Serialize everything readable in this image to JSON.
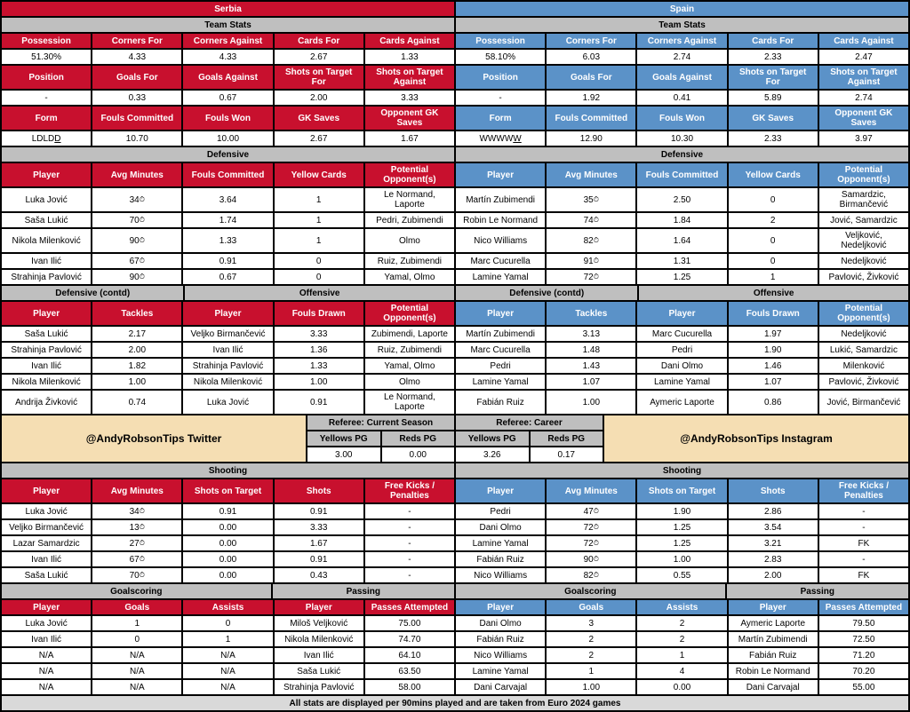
{
  "colors": {
    "red": "#c8102e",
    "blue": "#5b92c8",
    "gray": "#bfbfbf",
    "promo": "#f5deb3",
    "footer": "#d9d9d9"
  },
  "teams": {
    "left": "Serbia",
    "right": "Spain"
  },
  "sections": {
    "teamStats": "Team Stats",
    "defensive": "Defensive",
    "defContd": "Defensive (contd)",
    "offensive": "Offensive",
    "shooting": "Shooting",
    "goalscoring": "Goalscoring",
    "passing": "Passing",
    "refCurrent": "Referee: Current Season",
    "refCareer": "Referee: Career"
  },
  "statHdr": {
    "r1": [
      "Possession",
      "Corners For",
      "Corners Against",
      "Cards For",
      "Cards Against"
    ],
    "r2": [
      "Position",
      "Goals For",
      "Goals Against",
      "Shots on Target For",
      "Shots on Target Against"
    ],
    "r3": [
      "Form",
      "Fouls Committed",
      "Fouls Won",
      "GK Saves",
      "Opponent GK Saves"
    ]
  },
  "stats": {
    "left": {
      "r1": [
        "51.30%",
        "4.33",
        "4.33",
        "2.67",
        "1.33"
      ],
      "r2": [
        "-",
        "0.33",
        "0.67",
        "2.00",
        "3.33"
      ],
      "r3": [
        "L D L D D",
        "10.70",
        "10.00",
        "2.67",
        "1.67"
      ]
    },
    "right": {
      "r1": [
        "58.10%",
        "6.03",
        "2.74",
        "2.33",
        "2.47"
      ],
      "r2": [
        "-",
        "1.92",
        "0.41",
        "5.89",
        "2.74"
      ],
      "r3": [
        "W W W W W",
        "12.90",
        "10.30",
        "2.33",
        "3.97"
      ]
    }
  },
  "formLastU": {
    "left": "D",
    "right": "W"
  },
  "defHdr": [
    "Player",
    "Avg Minutes",
    "Fouls Committed",
    "Yellow Cards",
    "Potential Opponent(s)"
  ],
  "def": {
    "left": [
      [
        "Luka Jović",
        "34",
        "3.64",
        "1",
        "Le Normand, Laporte"
      ],
      [
        "Saša Lukić",
        "70",
        "1.74",
        "1",
        "Pedri, Zubimendi"
      ],
      [
        "Nikola Milenković",
        "90",
        "1.33",
        "1",
        "Olmo"
      ],
      [
        "Ivan Ilić",
        "67",
        "0.91",
        "0",
        "Ruiz, Zubimendi"
      ],
      [
        "Strahinja Pavlović",
        "90",
        "0.67",
        "0",
        "Yamal, Olmo"
      ]
    ],
    "right": [
      [
        "Martín Zubimendi",
        "35",
        "2.50",
        "0",
        "Samardzic, Birmančević"
      ],
      [
        "Robin Le Normand",
        "74",
        "1.84",
        "2",
        "Jović, Samardzic"
      ],
      [
        "Nico Williams",
        "82",
        "1.64",
        "0",
        "Veljković, Nedeljković"
      ],
      [
        "Marc Cucurella",
        "91",
        "1.31",
        "0",
        "Nedeljković"
      ],
      [
        "Lamine Yamal",
        "72",
        "1.25",
        "1",
        "Pavlović, Živković"
      ]
    ]
  },
  "tackHdr": [
    "Player",
    "Tackles"
  ],
  "offHdr": [
    "Player",
    "Fouls Drawn",
    "Potential Opponent(s)"
  ],
  "tack": {
    "left": [
      [
        "Saša Lukić",
        "2.17"
      ],
      [
        "Strahinja Pavlović",
        "2.00"
      ],
      [
        "Ivan Ilić",
        "1.82"
      ],
      [
        "Nikola Milenković",
        "1.00"
      ],
      [
        "Andrija Živković",
        "0.74"
      ]
    ],
    "right": [
      [
        "Martín Zubimendi",
        "3.13"
      ],
      [
        "Marc Cucurella",
        "1.48"
      ],
      [
        "Pedri",
        "1.43"
      ],
      [
        "Lamine Yamal",
        "1.07"
      ],
      [
        "Fabián Ruiz",
        "1.00"
      ]
    ]
  },
  "off": {
    "left": [
      [
        "Veljko Birmančević",
        "3.33",
        "Zubimendi, Laporte"
      ],
      [
        "Ivan Ilić",
        "1.36",
        "Ruiz, Zubimendi"
      ],
      [
        "Strahinja Pavlović",
        "1.33",
        "Yamal, Olmo"
      ],
      [
        "Nikola Milenković",
        "1.00",
        "Olmo"
      ],
      [
        "Luka Jović",
        "0.91",
        "Le Normand, Laporte"
      ]
    ],
    "right": [
      [
        "Marc Cucurella",
        "1.97",
        "Nedeljković"
      ],
      [
        "Pedri",
        "1.90",
        "Lukić, Samardzic"
      ],
      [
        "Dani Olmo",
        "1.46",
        "Milenković"
      ],
      [
        "Lamine Yamal",
        "1.07",
        "Pavlović, Živković"
      ],
      [
        "Aymeric Laporte",
        "0.86",
        "Jović, Birmančević"
      ]
    ]
  },
  "promo": {
    "left": "@AndyRobsonTips Twitter",
    "right": "@AndyRobsonTips Instagram"
  },
  "refHdr": [
    "Yellows PG",
    "Reds PG"
  ],
  "ref": {
    "current": [
      "3.00",
      "0.00"
    ],
    "career": [
      "3.26",
      "0.17"
    ]
  },
  "shootHdr": [
    "Player",
    "Avg Minutes",
    "Shots on Target",
    "Shots",
    "Free Kicks / Penalties"
  ],
  "shoot": {
    "left": [
      [
        "Luka Jović",
        "34",
        "0.91",
        "0.91",
        "-"
      ],
      [
        "Veljko Birmančević",
        "13",
        "0.00",
        "3.33",
        "-"
      ],
      [
        "Lazar Samardzic",
        "27",
        "0.00",
        "1.67",
        "-"
      ],
      [
        "Ivan Ilić",
        "67",
        "0.00",
        "0.91",
        "-"
      ],
      [
        "Saša Lukić",
        "70",
        "0.00",
        "0.43",
        "-"
      ]
    ],
    "right": [
      [
        "Pedri",
        "47",
        "1.90",
        "2.86",
        "-"
      ],
      [
        "Dani Olmo",
        "72",
        "1.25",
        "3.54",
        "-"
      ],
      [
        "Lamine Yamal",
        "72",
        "1.25",
        "3.21",
        "FK"
      ],
      [
        "Fabián Ruiz",
        "90",
        "1.00",
        "2.83",
        "-"
      ],
      [
        "Nico Williams",
        "82",
        "0.55",
        "2.00",
        "FK"
      ]
    ]
  },
  "goalHdr": [
    "Player",
    "Goals",
    "Assists"
  ],
  "passHdr": [
    "Player",
    "Passes Attempted"
  ],
  "goal": {
    "left": [
      [
        "Luka Jović",
        "1",
        "0"
      ],
      [
        "Ivan Ilić",
        "0",
        "1"
      ],
      [
        "N/A",
        "N/A",
        "N/A"
      ],
      [
        "N/A",
        "N/A",
        "N/A"
      ],
      [
        "N/A",
        "N/A",
        "N/A"
      ]
    ],
    "right": [
      [
        "Dani Olmo",
        "3",
        "2"
      ],
      [
        "Fabián Ruiz",
        "2",
        "2"
      ],
      [
        "Nico Williams",
        "2",
        "1"
      ],
      [
        "Lamine Yamal",
        "1",
        "4"
      ],
      [
        "Dani Carvajal",
        "1.00",
        "0.00"
      ]
    ]
  },
  "pass": {
    "left": [
      [
        "Miloš Veljković",
        "75.00"
      ],
      [
        "Nikola Milenković",
        "74.70"
      ],
      [
        "Ivan Ilić",
        "64.10"
      ],
      [
        "Saša Lukić",
        "63.50"
      ],
      [
        "Strahinja Pavlović",
        "58.00"
      ]
    ],
    "right": [
      [
        "Aymeric Laporte",
        "79.50"
      ],
      [
        "Martín Zubimendi",
        "72.50"
      ],
      [
        "Fabián Ruiz",
        "71.20"
      ],
      [
        "Robin Le Normand",
        "70.20"
      ],
      [
        "Dani Carvajal",
        "55.00"
      ]
    ]
  },
  "footer": "All stats are displayed per 90mins played and are taken from Euro 2024 games"
}
